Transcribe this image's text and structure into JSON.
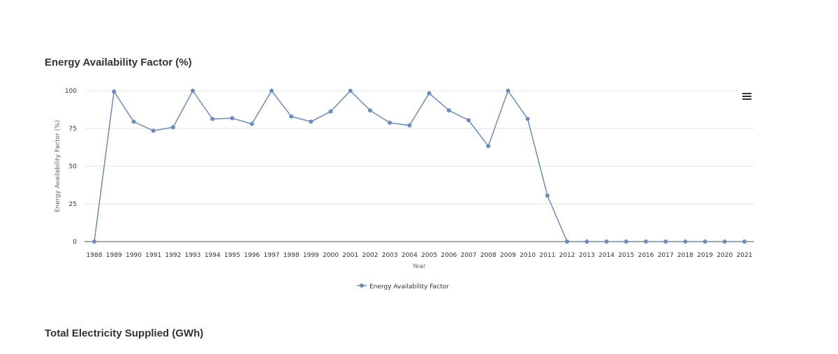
{
  "sections": {
    "energy_title": "Energy Availability Factor (%)",
    "electricity_title": "Total Electricity Supplied (GWh)"
  },
  "colors": {
    "series": "#6b8cbd",
    "grid": "#e6e6e6",
    "axis": "#555555"
  },
  "icons": {
    "menu": "hamburger-menu-icon"
  },
  "chart_data": {
    "type": "line",
    "title": "Energy Availability Factor (%)",
    "xlabel": "Year",
    "ylabel": "Energy Availability Factor (%)",
    "ylim": [
      0,
      100
    ],
    "yticks": [
      0,
      25,
      50,
      75,
      100
    ],
    "grid": true,
    "legend_position": "bottom-center",
    "categories": [
      "1988",
      "1989",
      "1990",
      "1991",
      "1992",
      "1993",
      "1994",
      "1995",
      "1996",
      "1997",
      "1998",
      "1999",
      "2000",
      "2001",
      "2002",
      "2003",
      "2004",
      "2005",
      "2006",
      "2007",
      "2008",
      "2009",
      "2010",
      "2011",
      "2012",
      "2013",
      "2014",
      "2015",
      "2016",
      "2017",
      "2018",
      "2019",
      "2020",
      "2021"
    ],
    "series": [
      {
        "name": "Energy Availability Factor",
        "values": [
          0,
          99.5,
          79.5,
          73.5,
          75.8,
          100,
          81.3,
          81.8,
          78,
          100,
          83,
          79.5,
          86.3,
          100,
          87,
          78.8,
          77,
          98.3,
          87,
          80.5,
          63.3,
          100,
          81.3,
          30.5,
          0,
          0,
          0,
          0,
          0,
          0,
          0,
          0,
          0,
          0
        ]
      }
    ]
  }
}
